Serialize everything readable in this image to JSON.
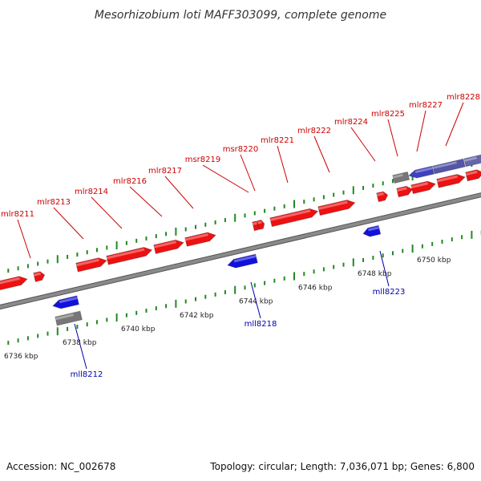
{
  "title": "Mesorhizobium loti MAFF303099, complete genome",
  "footer": {
    "accession": "Accession: NC_002678",
    "summary": "Topology: circular; Length: 7,036,071 bp; Genes: 6,800"
  },
  "colors": {
    "forward_gene": "#ee1111",
    "reverse_gene": "#1111dd",
    "other_feature": "#777777",
    "tick": "#228822",
    "backbone": "#8a8a8a",
    "forward_label": "#cc0000",
    "reverse_label": "#0000aa"
  },
  "kbp_labels": [
    "6736 kbp",
    "6738 kbp",
    "6740 kbp",
    "6742 kbp",
    "6744 kbp",
    "6746 kbp",
    "6748 kbp",
    "6750 kbp"
  ],
  "forward_genes": [
    "mlr8211",
    "mlr8213",
    "mlr8214",
    "mlr8216",
    "mlr8217",
    "msr8219",
    "msr8220",
    "mlr8221",
    "mlr8222",
    "mlr8224",
    "mlr8225",
    "mlr8227",
    "mlr8228"
  ],
  "reverse_genes": [
    "mll8212",
    "mll8218",
    "mll8223"
  ]
}
